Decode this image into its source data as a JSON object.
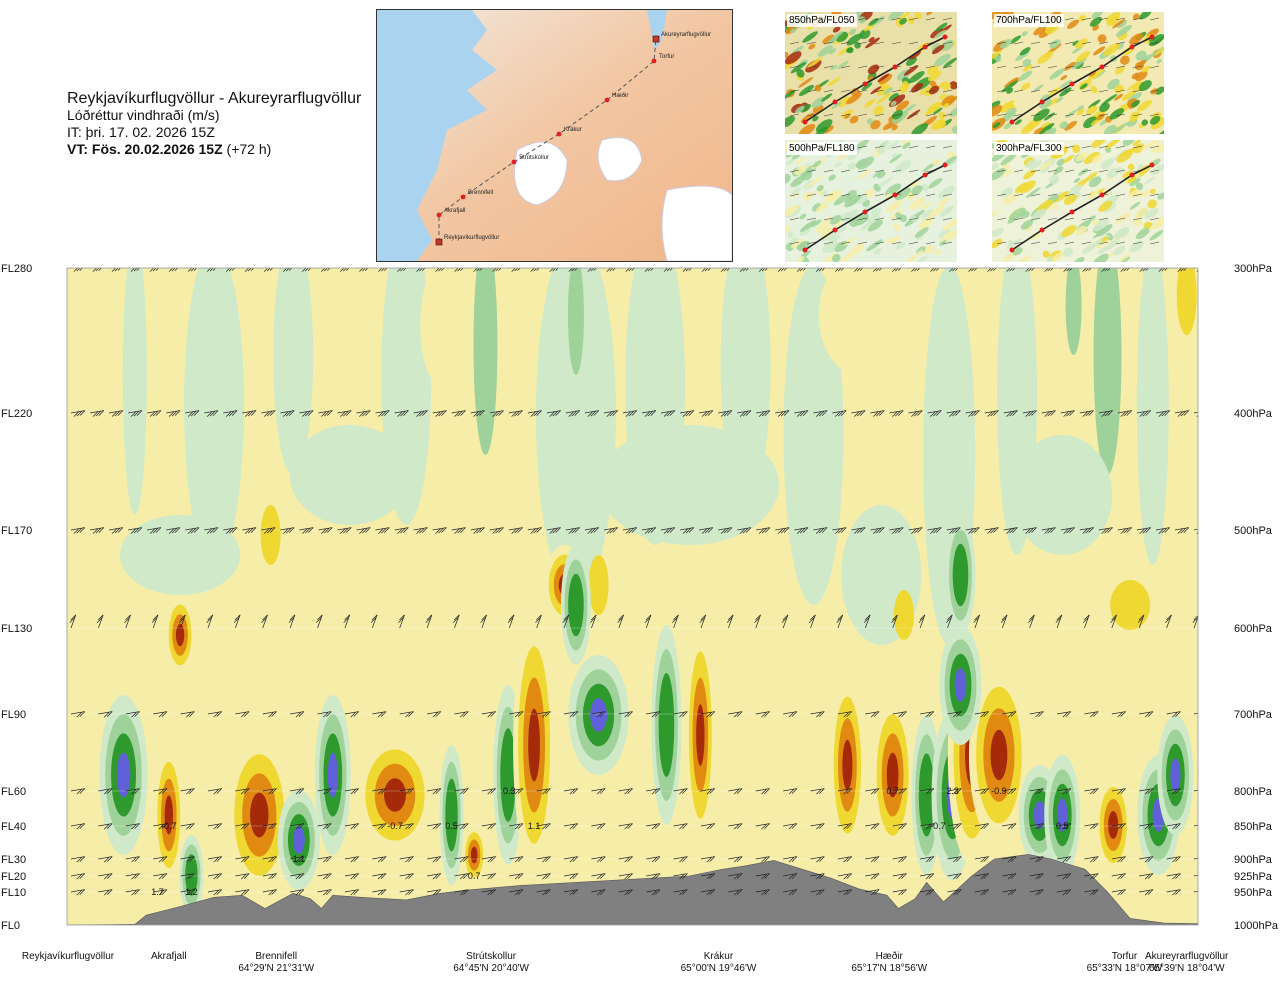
{
  "title": {
    "route": "Reykjavíkurflugvöllur - Akureyrarflugvöllur",
    "quantity": "Lóðréttur vindhraði (m/s)",
    "issue_time": "IT: þri. 17. 02. 2026 15Z",
    "valid_time_bold": "VT: Fös. 20.02.2026 15Z",
    "valid_offset": "(+72 h)"
  },
  "map_panel": {
    "points": [
      {
        "name": "Akureyrarflugvöllur"
      },
      {
        "name": "Torfur"
      },
      {
        "name": "Hæðir"
      },
      {
        "name": "Krákur"
      },
      {
        "name": "Strútskollur"
      },
      {
        "name": "Brennifell"
      },
      {
        "name": "Akrafjall"
      },
      {
        "name": "Reykjavíkurflugvöllur"
      }
    ]
  },
  "mini_maps": [
    {
      "label": "850hPa/FL050"
    },
    {
      "label": "700hPa/FL100"
    },
    {
      "label": "500hPa/FL180"
    },
    {
      "label": "300hPa/FL300"
    }
  ],
  "colors": {
    "updraft_strong": "#a52a0a",
    "updraft_medium": "#e08a12",
    "updraft_weak": "#f0d832",
    "updraft_faint": "#f6eea8",
    "down_faint": "#cfe9c9",
    "down_weak": "#9fd29a",
    "down_medium": "#2e9a2e",
    "down_strong": "#6060d8",
    "terrain": "#808080"
  },
  "chart_data": {
    "type": "heatmap",
    "title": "Lóðréttur vindhraði (m/s)",
    "left_axis_labels": [
      "FL280",
      "FL220",
      "FL170",
      "FL130",
      "FL90",
      "FL60",
      "FL40",
      "FL30",
      "FL20",
      "FL10",
      "FL0"
    ],
    "right_axis_labels": [
      "300hPa",
      "400hPa",
      "500hPa",
      "600hPa",
      "700hPa",
      "800hPa",
      "850hPa",
      "900hPa",
      "925hPa",
      "950hPa",
      "1000hPa"
    ],
    "pressure_levels_hpa": [
      300,
      400,
      500,
      600,
      700,
      800,
      850,
      900,
      925,
      950,
      1000
    ],
    "annotations": [
      {
        "text": "-0.7",
        "distance": 0.09,
        "level_hpa": 850
      },
      {
        "text": "1.7",
        "distance": 0.08,
        "level_hpa": 950
      },
      {
        "text": "1.2",
        "distance": 0.11,
        "level_hpa": 950
      },
      {
        "text": "1.1",
        "distance": 0.205,
        "level_hpa": 900
      },
      {
        "text": "-0.7",
        "distance": 0.29,
        "level_hpa": 850
      },
      {
        "text": "0.5",
        "distance": 0.34,
        "level_hpa": 850
      },
      {
        "text": "0.7",
        "distance": 0.36,
        "level_hpa": 925
      },
      {
        "text": "0.3",
        "distance": 0.391,
        "level_hpa": 800
      },
      {
        "text": "1.1",
        "distance": 0.413,
        "level_hpa": 850
      },
      {
        "text": "0.7",
        "distance": 0.73,
        "level_hpa": 800
      },
      {
        "text": "2.3",
        "distance": 0.783,
        "level_hpa": 800
      },
      {
        "text": "-0.7",
        "distance": 0.77,
        "level_hpa": 850
      },
      {
        "text": "-0.9",
        "distance": 0.824,
        "level_hpa": 800
      },
      {
        "text": "0.5",
        "distance": 0.88,
        "level_hpa": 850
      }
    ],
    "waypoints": [
      {
        "name": "Reykjavíkurflugvöllur",
        "coords": "",
        "distance": 0.0
      },
      {
        "name": "Akrafjall",
        "coords": "",
        "distance": 0.09
      },
      {
        "name": "Brennifell",
        "coords": "64°29'N 21°31'W",
        "distance": 0.185
      },
      {
        "name": "Strútskollur",
        "coords": "64°45'N 20°40'W",
        "distance": 0.375
      },
      {
        "name": "Krákur",
        "coords": "65°00'N 19°46'W",
        "distance": 0.576
      },
      {
        "name": "Hæðir",
        "coords": "65°17'N 18°56'W",
        "distance": 0.727
      },
      {
        "name": "Torfur",
        "coords": "65°33'N 18°07'W",
        "distance": 0.935
      },
      {
        "name": "Akureyrarflugvöllur",
        "coords": "65°39'N 18°04'W",
        "distance": 0.99
      }
    ],
    "terrain_profile_hpa": [
      [
        0.0,
        1000
      ],
      [
        0.06,
        999
      ],
      [
        0.07,
        985
      ],
      [
        0.1,
        972
      ],
      [
        0.13,
        958
      ],
      [
        0.155,
        955
      ],
      [
        0.175,
        975
      ],
      [
        0.2,
        952
      ],
      [
        0.215,
        960
      ],
      [
        0.225,
        975
      ],
      [
        0.235,
        955
      ],
      [
        0.26,
        958
      ],
      [
        0.3,
        962
      ],
      [
        0.33,
        952
      ],
      [
        0.36,
        946
      ],
      [
        0.4,
        940
      ],
      [
        0.45,
        935
      ],
      [
        0.5,
        930
      ],
      [
        0.55,
        925
      ],
      [
        0.58,
        915
      ],
      [
        0.6,
        910
      ],
      [
        0.625,
        902
      ],
      [
        0.65,
        915
      ],
      [
        0.675,
        928
      ],
      [
        0.7,
        945
      ],
      [
        0.725,
        955
      ],
      [
        0.735,
        975
      ],
      [
        0.75,
        960
      ],
      [
        0.76,
        935
      ],
      [
        0.775,
        965
      ],
      [
        0.8,
        925
      ],
      [
        0.82,
        900
      ],
      [
        0.85,
        893
      ],
      [
        0.87,
        900
      ],
      [
        0.9,
        915
      ],
      [
        0.92,
        950
      ],
      [
        0.94,
        990
      ],
      [
        0.97,
        997
      ],
      [
        1.0,
        998
      ]
    ]
  }
}
